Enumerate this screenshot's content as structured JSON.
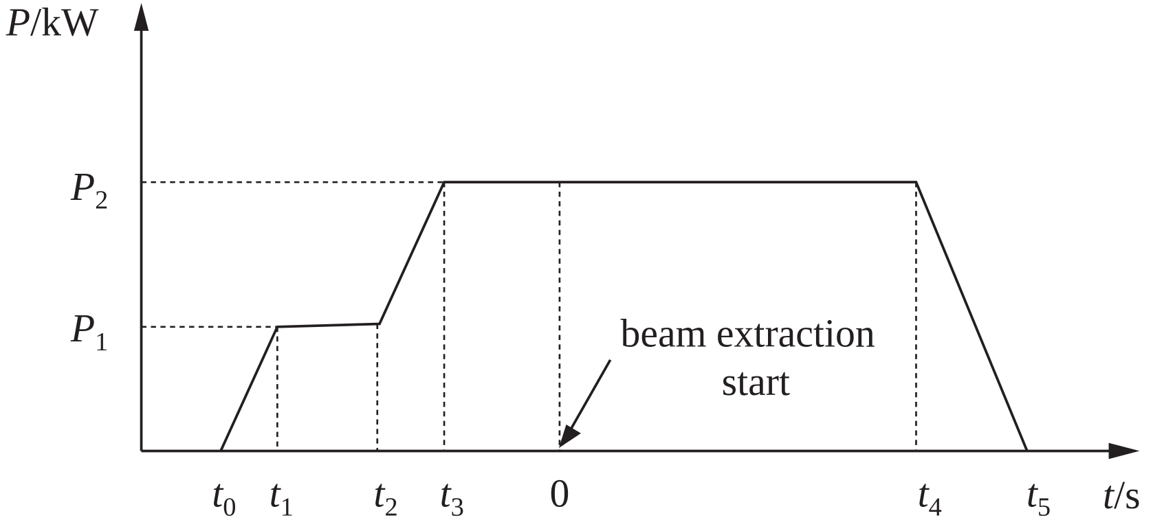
{
  "axes": {
    "y_label": {
      "symbol": "P",
      "unit": "/kW"
    },
    "x_label": {
      "symbol": "t",
      "unit": "/s"
    }
  },
  "levels": [
    {
      "symbol": "P",
      "sub": "2"
    },
    {
      "symbol": "P",
      "sub": "1"
    }
  ],
  "time_marks": [
    {
      "symbol": "t",
      "sub": "0"
    },
    {
      "symbol": "t",
      "sub": "1"
    },
    {
      "symbol": "t",
      "sub": "2"
    },
    {
      "symbol": "t",
      "sub": "3"
    },
    {
      "symbol": "0"
    },
    {
      "symbol": "t",
      "sub": "4"
    },
    {
      "symbol": "t",
      "sub": "5"
    }
  ],
  "annotation": {
    "lines": [
      "beam extraction",
      "start"
    ]
  }
}
